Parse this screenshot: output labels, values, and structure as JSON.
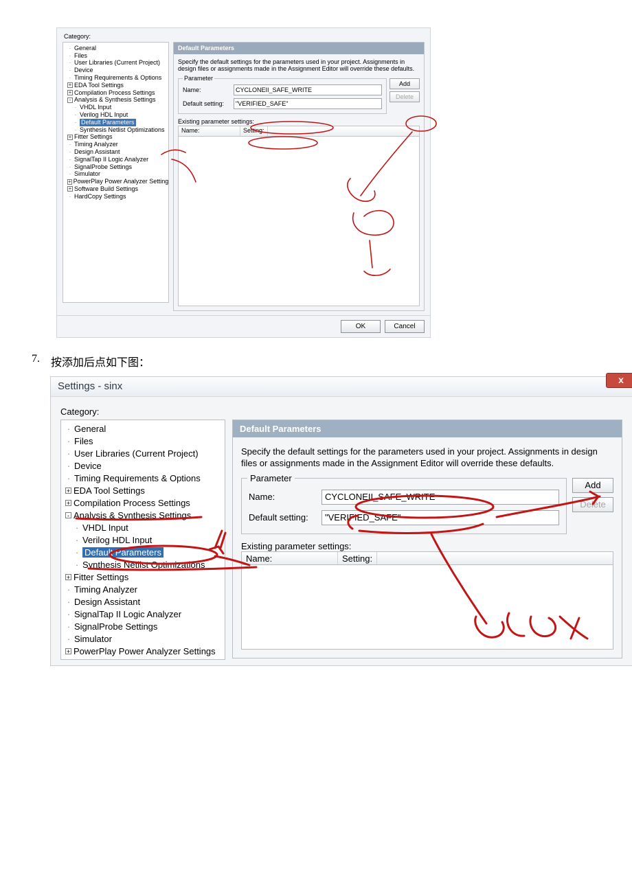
{
  "dlg1": {
    "category_label": "Category:",
    "panel_title": "Default Parameters",
    "description": "Specify the default settings for the parameters used in your project.  Assignments in design files or assignments made in the Assignment Editor will override these defaults.",
    "fieldset_legend": "Parameter",
    "name_label": "Name:",
    "name_value": "CYCLONEII_SAFE_WRITE",
    "default_label": "Default setting:",
    "default_value": "\"VERIFIED_SAFE\"",
    "add_btn": "Add",
    "delete_btn": "Delete",
    "existing_label": "Existing parameter settings:",
    "col_name": "Name:",
    "col_setting": "Setting:",
    "ok_btn": "OK",
    "cancel_btn": "Cancel",
    "tree": [
      {
        "lvl": 0,
        "exp": "",
        "label": "General"
      },
      {
        "lvl": 0,
        "exp": "",
        "label": "Files"
      },
      {
        "lvl": 0,
        "exp": "",
        "label": "User Libraries (Current Project)"
      },
      {
        "lvl": 0,
        "exp": "",
        "label": "Device"
      },
      {
        "lvl": 0,
        "exp": "",
        "label": "Timing Requirements & Options"
      },
      {
        "lvl": 0,
        "exp": "+",
        "label": "EDA Tool Settings"
      },
      {
        "lvl": 0,
        "exp": "+",
        "label": "Compilation Process Settings"
      },
      {
        "lvl": 0,
        "exp": "-",
        "label": "Analysis & Synthesis Settings"
      },
      {
        "lvl": 1,
        "exp": "",
        "label": "VHDL Input"
      },
      {
        "lvl": 1,
        "exp": "",
        "label": "Verilog HDL Input"
      },
      {
        "lvl": 1,
        "exp": "",
        "label": "Default Parameters",
        "selected": true
      },
      {
        "lvl": 1,
        "exp": "",
        "label": "Synthesis Netlist Optimizations"
      },
      {
        "lvl": 0,
        "exp": "+",
        "label": "Fitter Settings"
      },
      {
        "lvl": 0,
        "exp": "",
        "label": "Timing Analyzer"
      },
      {
        "lvl": 0,
        "exp": "",
        "label": "Design Assistant"
      },
      {
        "lvl": 0,
        "exp": "",
        "label": "SignalTap II Logic Analyzer"
      },
      {
        "lvl": 0,
        "exp": "",
        "label": "SignalProbe Settings"
      },
      {
        "lvl": 0,
        "exp": "",
        "label": "Simulator"
      },
      {
        "lvl": 0,
        "exp": "+",
        "label": "PowerPlay Power Analyzer Settings"
      },
      {
        "lvl": 0,
        "exp": "+",
        "label": "Software Build Settings"
      },
      {
        "lvl": 0,
        "exp": "",
        "label": "HardCopy Settings"
      }
    ]
  },
  "step": {
    "num": "7.",
    "text": "按添加后点如下图："
  },
  "dlg2": {
    "title": "Settings - sinx",
    "close_glyph": "x",
    "category_label": "Category:",
    "panel_title": "Default Parameters",
    "description": "Specify the default settings for the parameters used in your project.  Assignments in design files or assignments made in the Assignment Editor will override these defaults.",
    "fieldset_legend": "Parameter",
    "name_label": "Name:",
    "name_value": "CYCLONEII_SAFE_WRITE",
    "default_label": "Default setting:",
    "default_value": "\"VERIFIED_SAFE\"",
    "add_btn": "Add",
    "delete_btn": "Delete",
    "existing_label": "Existing parameter settings:",
    "col_name": "Name:",
    "col_setting": "Setting:",
    "tree": [
      {
        "lvl": 0,
        "exp": "",
        "label": "General"
      },
      {
        "lvl": 0,
        "exp": "",
        "label": "Files"
      },
      {
        "lvl": 0,
        "exp": "",
        "label": "User Libraries (Current Project)"
      },
      {
        "lvl": 0,
        "exp": "",
        "label": "Device"
      },
      {
        "lvl": 0,
        "exp": "",
        "label": "Timing Requirements & Options"
      },
      {
        "lvl": 0,
        "exp": "+",
        "label": "EDA Tool Settings"
      },
      {
        "lvl": 0,
        "exp": "+",
        "label": "Compilation Process Settings"
      },
      {
        "lvl": 0,
        "exp": "-",
        "label": "Analysis & Synthesis Settings"
      },
      {
        "lvl": 1,
        "exp": "",
        "label": "VHDL Input"
      },
      {
        "lvl": 1,
        "exp": "",
        "label": "Verilog HDL Input"
      },
      {
        "lvl": 1,
        "exp": "",
        "label": "Default Parameters",
        "selected": true
      },
      {
        "lvl": 1,
        "exp": "",
        "label": "Synthesis Netlist Optimizations"
      },
      {
        "lvl": 0,
        "exp": "+",
        "label": "Fitter Settings"
      },
      {
        "lvl": 0,
        "exp": "",
        "label": "Timing Analyzer"
      },
      {
        "lvl": 0,
        "exp": "",
        "label": "Design Assistant"
      },
      {
        "lvl": 0,
        "exp": "",
        "label": "SignalTap II Logic Analyzer"
      },
      {
        "lvl": 0,
        "exp": "",
        "label": "SignalProbe Settings"
      },
      {
        "lvl": 0,
        "exp": "",
        "label": "Simulator"
      },
      {
        "lvl": 0,
        "exp": "+",
        "label": "PowerPlay Power Analyzer Settings"
      }
    ]
  },
  "annotation_color": "#c21515"
}
